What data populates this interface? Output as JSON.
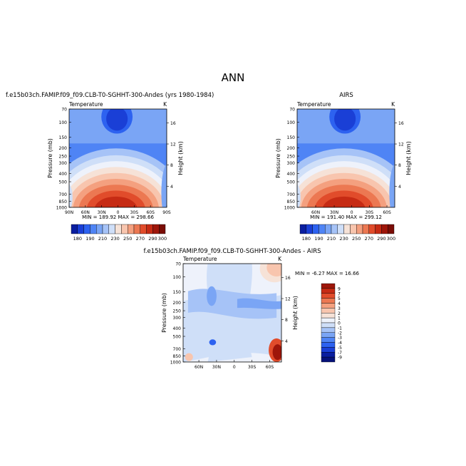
{
  "page_title": "ANN",
  "chart_data": [
    {
      "type": "heatmap",
      "title": "f.e15b03ch.FAMIP.f09_f09.CLB-T0-SGHHT-300-Andes (yrs 1980-1984)",
      "left_label": "Temperature",
      "right_label": "K",
      "ylabel": "Pressure (mb)",
      "right_axis_label": "Height (km)",
      "x_ticks": [
        "90N",
        "60N",
        "30N",
        "0",
        "30S",
        "60S",
        "90S"
      ],
      "y_ticks": [
        "70",
        "100",
        "150",
        "200",
        "250",
        "300",
        "400",
        "500",
        "700",
        "850",
        "1000"
      ],
      "height_ticks": [
        "16",
        "12",
        "8",
        "4"
      ],
      "stats": "MIN = 189.92   MAX = 298.66",
      "colorbar_labels": [
        "180",
        "190",
        "210",
        "230",
        "250",
        "270",
        "290",
        "300"
      ],
      "colorbar_colors": [
        "#0a1ea0",
        "#1a3fd6",
        "#2d62f0",
        "#4f84f5",
        "#7aa5f5",
        "#a6c3f7",
        "#cfdff8",
        "#f6e2d7",
        "#f8c5ae",
        "#f4a07f",
        "#ec7852",
        "#e14c2b",
        "#c62b14",
        "#9e160a",
        "#7a0d06"
      ]
    },
    {
      "type": "heatmap",
      "title": "AIRS",
      "left_label": "Temperature",
      "right_label": "K",
      "ylabel": "Pressure (mb)",
      "right_axis_label": "Height (km)",
      "x_ticks": [
        "60N",
        "30N",
        "0",
        "30S",
        "60S"
      ],
      "y_ticks": [
        "70",
        "100",
        "150",
        "200",
        "250",
        "300",
        "400",
        "500",
        "700",
        "850",
        "1000"
      ],
      "height_ticks": [
        "16",
        "12",
        "8",
        "4"
      ],
      "stats": "MIN = 191.40   MAX = 299.12",
      "colorbar_labels": [
        "180",
        "190",
        "210",
        "230",
        "250",
        "270",
        "290",
        "300"
      ],
      "colorbar_colors": [
        "#0a1ea0",
        "#1a3fd6",
        "#2d62f0",
        "#4f84f5",
        "#7aa5f5",
        "#a6c3f7",
        "#cfdff8",
        "#f6e2d7",
        "#f8c5ae",
        "#f4a07f",
        "#ec7852",
        "#e14c2b",
        "#c62b14",
        "#9e160a",
        "#7a0d06"
      ]
    },
    {
      "type": "heatmap",
      "title": "f.e15b03ch.FAMIP.f09_f09.CLB-T0-SGHHT-300-Andes - AIRS",
      "left_label": "Temperature",
      "right_label": "K",
      "ylabel": "Pressure (mb)",
      "right_axis_label": "Height (km)",
      "x_ticks": [
        "60N",
        "30N",
        "0",
        "30S",
        "60S"
      ],
      "y_ticks": [
        "70",
        "100",
        "150",
        "200",
        "250",
        "300",
        "400",
        "500",
        "700",
        "850",
        "1000"
      ],
      "height_ticks": [
        "16",
        "12",
        "8",
        "4"
      ],
      "stats": "MIN = -6.27   MAX = 16.66",
      "colorbar_labels": [
        "9",
        "7",
        "5",
        "4",
        "3",
        "2",
        "1",
        "0",
        "-1",
        "-2",
        "-3",
        "-4",
        "-5",
        "-7",
        "-9"
      ],
      "colorbar_colors": [
        "#9e160a",
        "#c62b14",
        "#e14c2b",
        "#ec7852",
        "#f4a07f",
        "#f8c5ae",
        "#f6e2d7",
        "#eef2fb",
        "#cfdff8",
        "#a6c3f7",
        "#7aa5f5",
        "#4f84f5",
        "#2d62f0",
        "#1a3fd6",
        "#0a1ea0",
        "#06127a"
      ]
    }
  ]
}
